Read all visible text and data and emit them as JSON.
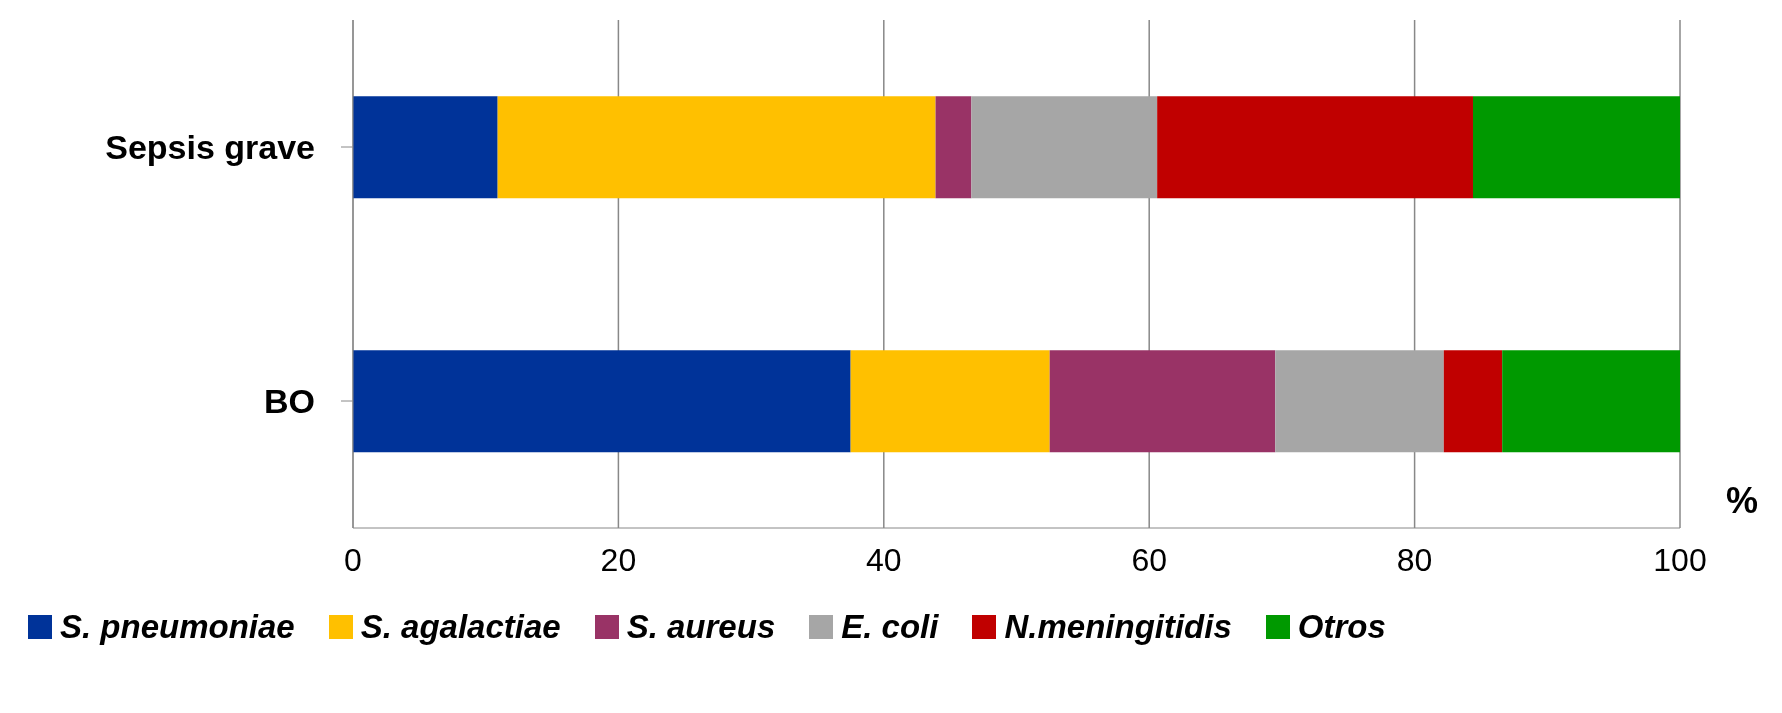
{
  "chart_data": {
    "type": "bar",
    "orientation": "horizontal",
    "stacked": true,
    "xlabel": "%",
    "categories": [
      "Sepsis grave",
      "BO"
    ],
    "series": [
      {
        "name": "S. pneumoniae",
        "color": "#003399",
        "values": [
          10.9,
          37.5
        ]
      },
      {
        "name": "S. agalactiae",
        "color": "#ffc000",
        "values": [
          33.0,
          15.0
        ]
      },
      {
        "name": "S. aureus",
        "color": "#993366",
        "values": [
          2.7,
          17.0
        ]
      },
      {
        "name": "E. coli",
        "color": "#a6a6a6",
        "values": [
          14.0,
          12.7
        ]
      },
      {
        "name": "N.meningitidis",
        "color": "#c00000",
        "values": [
          23.8,
          4.4
        ]
      },
      {
        "name": "Otros",
        "color": "#009900",
        "values": [
          15.6,
          13.4
        ]
      }
    ],
    "xlim": [
      0,
      100
    ],
    "xticks": [
      0,
      20,
      40,
      60,
      80,
      100
    ],
    "grid": "x",
    "legend": "bottom"
  }
}
